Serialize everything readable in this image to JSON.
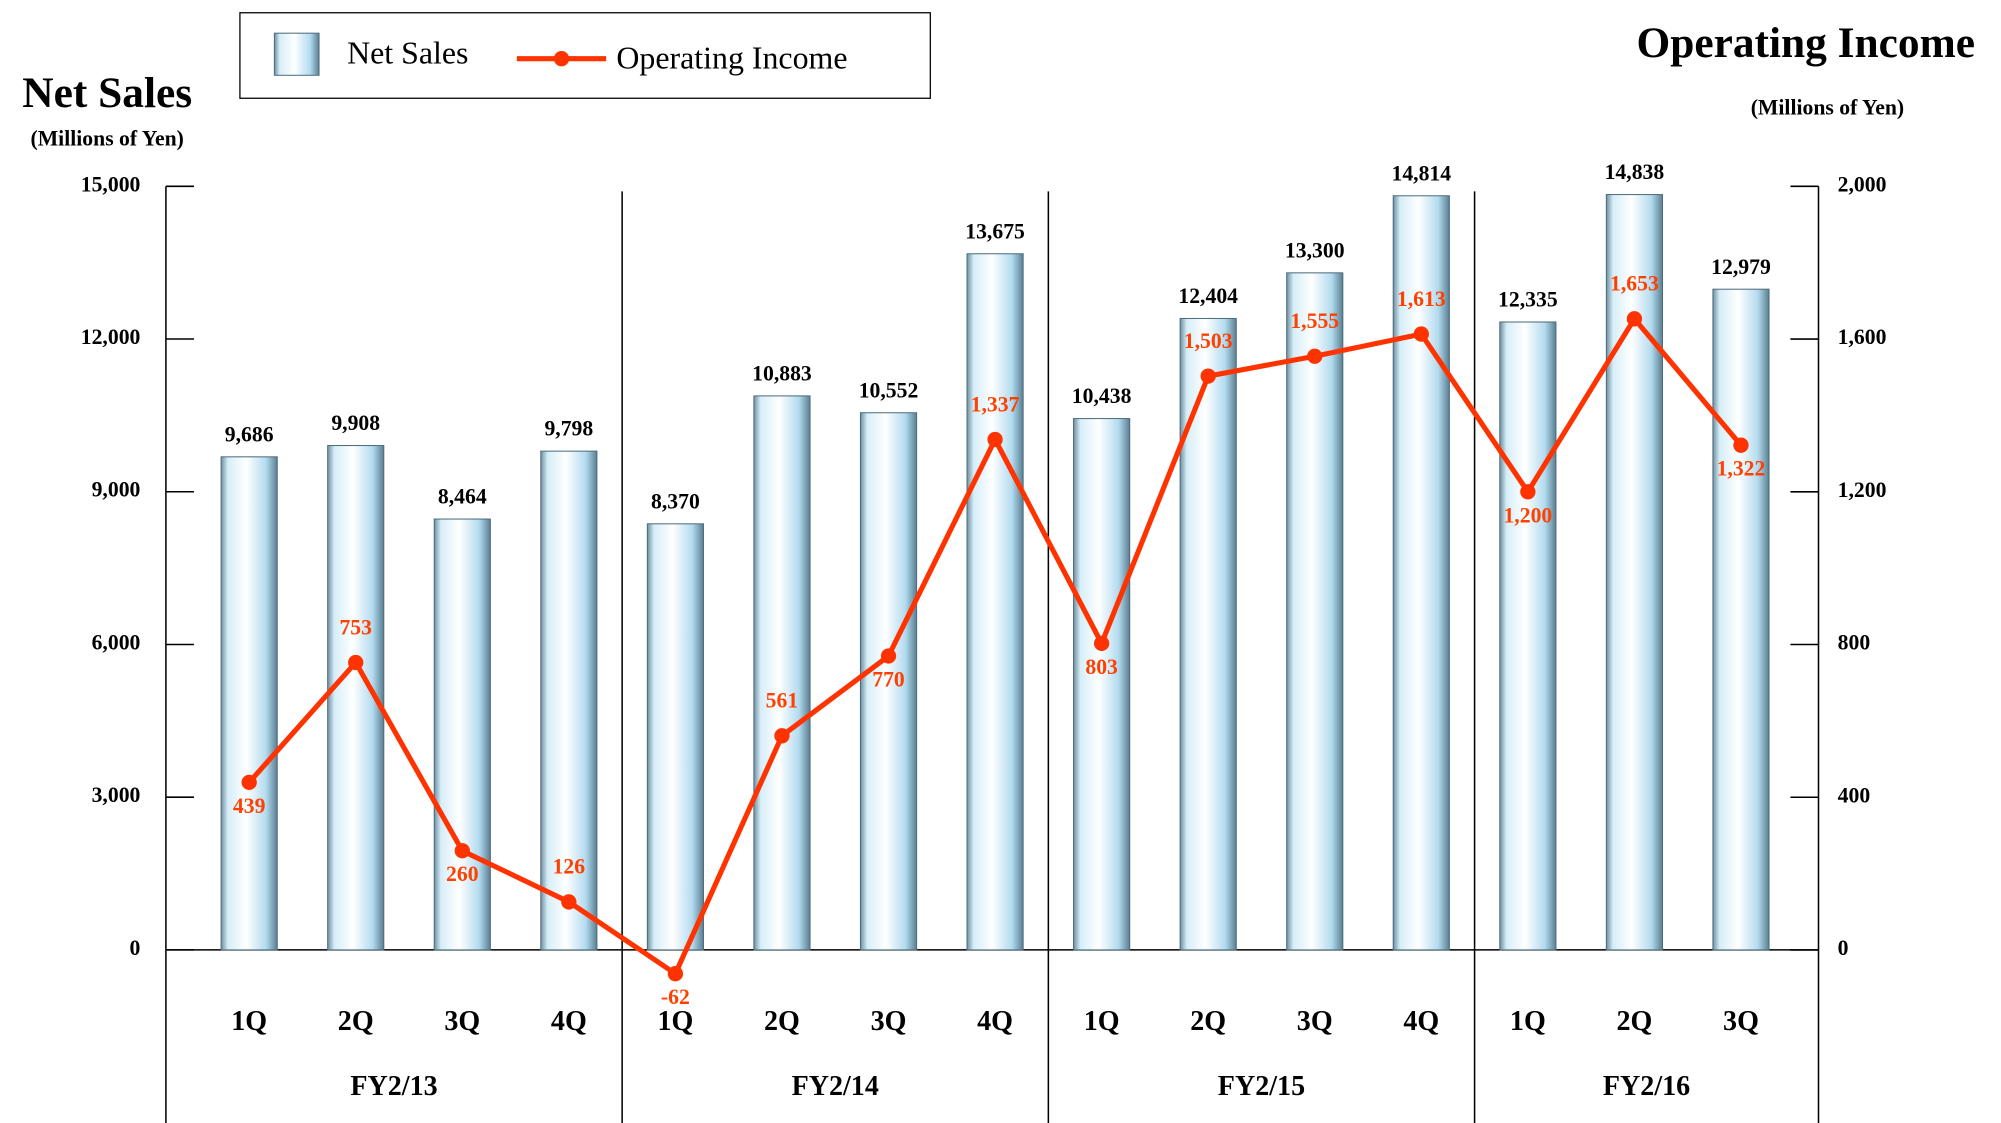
{
  "chart_data": {
    "type": "bar_line",
    "title": "Net Sales",
    "subtitle": "(Millions of Yen)",
    "y2_title": "Operating Income",
    "y2_subtitle": "(Millions of Yen)",
    "groups": [
      {
        "name": "FY2/13",
        "categories": [
          "1Q",
          "2Q",
          "3Q",
          "4Q"
        ]
      },
      {
        "name": "FY2/14",
        "categories": [
          "1Q",
          "2Q",
          "3Q",
          "4Q"
        ]
      },
      {
        "name": "FY2/15",
        "categories": [
          "1Q",
          "2Q",
          "3Q",
          "4Q"
        ]
      },
      {
        "name": "FY2/16",
        "categories": [
          "1Q",
          "2Q",
          "3Q"
        ]
      }
    ],
    "series": [
      {
        "name": "Net Sales",
        "type": "bar",
        "color": "#bfe3f2",
        "values": [
          9686,
          9908,
          8464,
          9798,
          8370,
          10883,
          10552,
          13675,
          10438,
          12404,
          13300,
          14814,
          12335,
          14838,
          12979
        ],
        "value_labels": [
          "9,686",
          "9,908",
          "8,464",
          "9,798",
          "8,370",
          "10,883",
          "10,552",
          "13,675",
          "10,438",
          "12,404",
          "13,300",
          "14,814",
          "12,335",
          "14,838",
          "12,979"
        ]
      },
      {
        "name": "Operating Income",
        "type": "line",
        "axis": "y2",
        "color": "#ff3300",
        "values": [
          439,
          753,
          260,
          126,
          -62,
          561,
          770,
          1337,
          803,
          1503,
          1555,
          1613,
          1200,
          1653,
          1322
        ],
        "value_labels": [
          "439",
          "753",
          "260",
          "126",
          "-62",
          "561",
          "770",
          "1,337",
          "803",
          "1,503",
          "1,555",
          "1,613",
          "1,200",
          "1,653",
          "1,322"
        ]
      }
    ],
    "ylim": [
      -3400,
      15000
    ],
    "yticks": [
      0,
      {
        "value": 3000,
        "label": "3,000"
      },
      {
        "value": 6000,
        "label": "6,000"
      },
      {
        "value": 9000,
        "label": "9,000"
      },
      {
        "value": 12000,
        "label": "12,000"
      },
      {
        "value": 15000,
        "label": "15,000"
      }
    ],
    "y2lim": [
      -453,
      2000
    ],
    "y2ticks": [
      0,
      400,
      800,
      {
        "value": 1200,
        "label": "1,200"
      },
      {
        "value": 1600,
        "label": "1,600"
      },
      {
        "value": 2000,
        "label": "2,000"
      }
    ],
    "legend": "top-left"
  }
}
